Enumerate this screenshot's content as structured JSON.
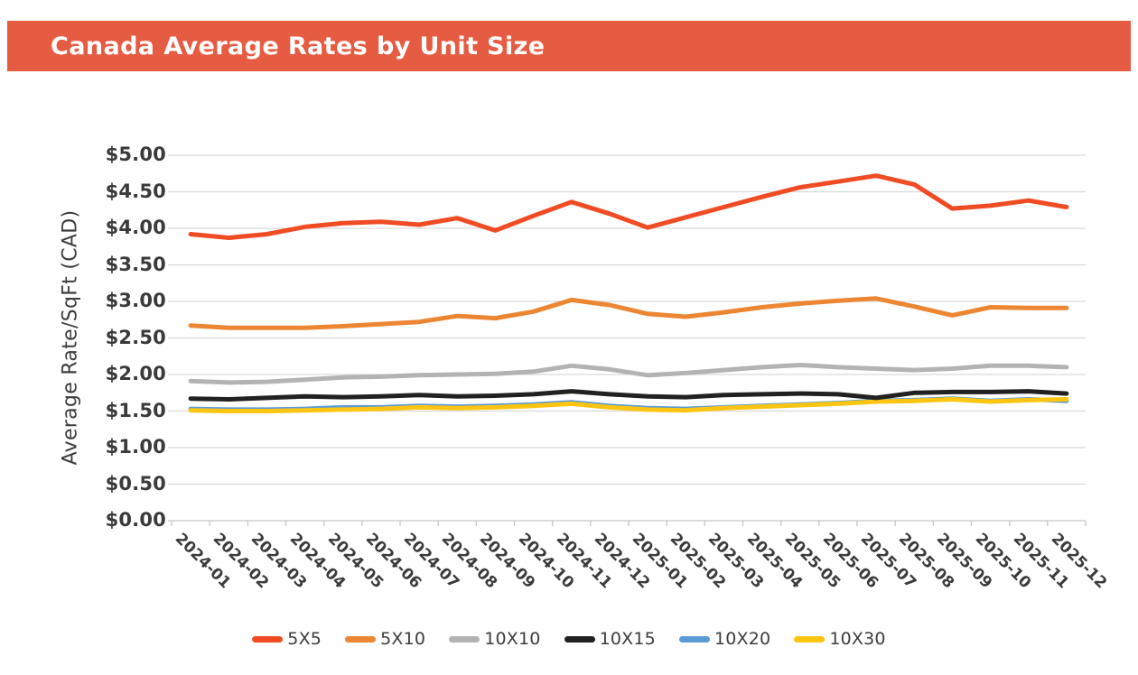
{
  "header": {
    "title": "Canada Average Rates by Unit Size"
  },
  "colors": {
    "header_bg": "#e65c42",
    "header_text": "#ffffff",
    "gridline": "#d9d9d9",
    "axis": "#c7c7c7",
    "tick_label": "#3a3a3a"
  },
  "chart_data": {
    "type": "line",
    "title": "Canada Average Rates by Unit Size",
    "xlabel": "",
    "ylabel": "Average Rate/SqFt (CAD)",
    "ylim": [
      0,
      5
    ],
    "ytick_step": 0.5,
    "ytick_labels": [
      "$0.00",
      "$0.50",
      "$1.00",
      "$1.50",
      "$2.00",
      "$2.50",
      "$3.00",
      "$3.50",
      "$4.00",
      "$4.50",
      "$5.00"
    ],
    "grid": true,
    "legend_position": "bottom",
    "categories": [
      "2024-01",
      "2024-02",
      "2024-03",
      "2024-04",
      "2024-05",
      "2024-06",
      "2024-07",
      "2024-08",
      "2024-09",
      "2024-10",
      "2024-11",
      "2024-12",
      "2025-01",
      "2025-02",
      "2025-03",
      "2025-04",
      "2025-05",
      "2025-06",
      "2025-07",
      "2025-08",
      "2025-09",
      "2025-10",
      "2025-11",
      "2025-12"
    ],
    "series": [
      {
        "name": "5X5",
        "color": "#f14b24",
        "values": [
          3.92,
          3.87,
          3.92,
          4.02,
          4.07,
          4.09,
          4.05,
          4.14,
          3.97,
          4.17,
          4.36,
          4.2,
          4.01,
          4.15,
          4.29,
          4.43,
          4.56,
          4.64,
          4.72,
          4.6,
          4.27,
          4.31,
          4.38,
          4.29
        ]
      },
      {
        "name": "5X10",
        "color": "#ec8633",
        "values": [
          2.67,
          2.64,
          2.64,
          2.64,
          2.66,
          2.69,
          2.72,
          2.8,
          2.77,
          2.86,
          3.02,
          2.95,
          2.83,
          2.79,
          2.85,
          2.92,
          2.97,
          3.01,
          3.04,
          2.93,
          2.81,
          2.92,
          2.91,
          2.91
        ]
      },
      {
        "name": "10X10",
        "color": "#b3b3b3",
        "values": [
          1.91,
          1.89,
          1.9,
          1.93,
          1.96,
          1.97,
          1.99,
          2.0,
          2.01,
          2.04,
          2.12,
          2.07,
          1.99,
          2.02,
          2.06,
          2.1,
          2.13,
          2.1,
          2.08,
          2.06,
          2.08,
          2.12,
          2.12,
          2.1
        ]
      },
      {
        "name": "10X15",
        "color": "#212121",
        "values": [
          1.67,
          1.66,
          1.68,
          1.7,
          1.69,
          1.7,
          1.72,
          1.7,
          1.71,
          1.73,
          1.77,
          1.73,
          1.7,
          1.69,
          1.72,
          1.73,
          1.74,
          1.73,
          1.68,
          1.75,
          1.76,
          1.76,
          1.77,
          1.74
        ]
      },
      {
        "name": "10X20",
        "color": "#5b9bd5",
        "values": [
          1.53,
          1.52,
          1.52,
          1.53,
          1.55,
          1.55,
          1.57,
          1.56,
          1.57,
          1.59,
          1.62,
          1.57,
          1.54,
          1.53,
          1.55,
          1.57,
          1.59,
          1.61,
          1.64,
          1.65,
          1.67,
          1.64,
          1.66,
          1.64
        ]
      },
      {
        "name": "10X30",
        "color": "#fcc511",
        "values": [
          1.51,
          1.5,
          1.5,
          1.51,
          1.52,
          1.53,
          1.55,
          1.54,
          1.55,
          1.57,
          1.6,
          1.55,
          1.52,
          1.51,
          1.54,
          1.56,
          1.58,
          1.6,
          1.63,
          1.64,
          1.66,
          1.63,
          1.65,
          1.66
        ]
      }
    ]
  }
}
